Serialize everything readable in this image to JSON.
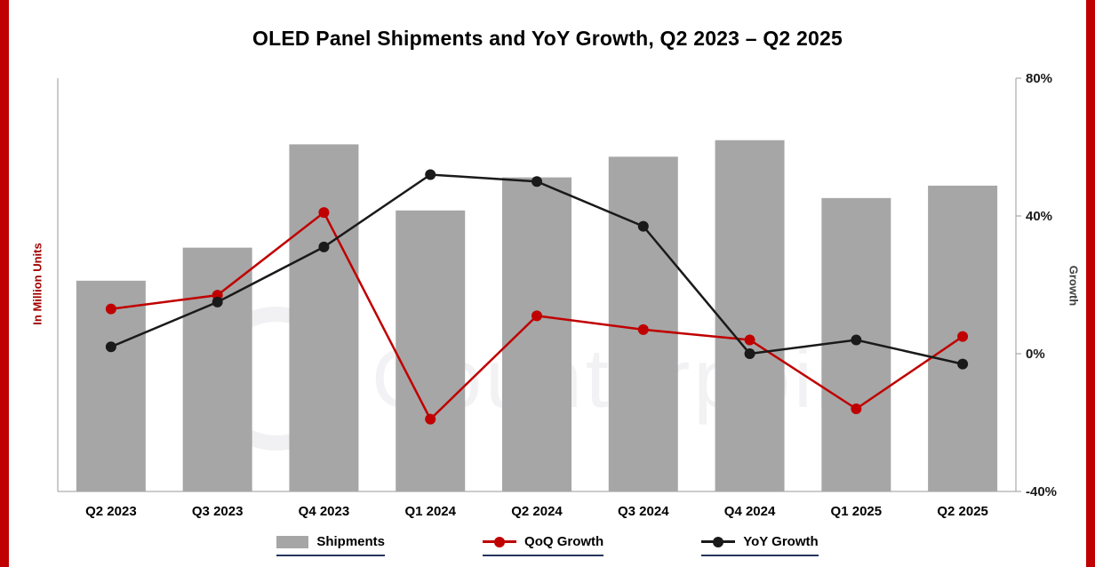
{
  "page": {
    "background": "#ffffff",
    "edge_strip_color": "#c00000"
  },
  "watermark": "Counterpoint",
  "chart_data": {
    "type": "bar",
    "combo": "bar + two line series (dual axis)",
    "title": "OLED Panel Shipments and YoY Growth, Q2 2023 – Q2 2025",
    "categories": [
      "Q2 2023",
      "Q3 2023",
      "Q4 2023",
      "Q1 2024",
      "Q2 2024",
      "Q3 2024",
      "Q4 2024",
      "Q1 2025",
      "Q2 2025"
    ],
    "left_axis": {
      "label": "In Million Units",
      "tick_labels_visible": false
    },
    "right_axis": {
      "label": "Growth",
      "tick_labels": [
        "80%",
        "40%",
        "0%",
        "-40%"
      ],
      "tick_values": [
        80,
        40,
        0,
        -40
      ],
      "range": [
        -40,
        80
      ],
      "grid": false
    },
    "bar_series": {
      "name": "Shipments",
      "color": "#a6a6a6",
      "units": "relative height, % of plot area (left axis shows no numbers)",
      "values": [
        51,
        59,
        84,
        68,
        76,
        81,
        85,
        71,
        74
      ]
    },
    "line_series": [
      {
        "name": "QoQ Growth",
        "color": "#c00000",
        "values_pct": [
          13,
          17,
          41,
          -19,
          11,
          7,
          4,
          -16,
          5
        ]
      },
      {
        "name": "YoY Growth",
        "color": "#1a1a1a",
        "values_pct": [
          2,
          15,
          31,
          52,
          50,
          37,
          0,
          4,
          -3
        ]
      }
    ],
    "legend": {
      "position": "bottom",
      "items": [
        "Shipments",
        "QoQ Growth",
        "YoY Growth"
      ]
    }
  }
}
